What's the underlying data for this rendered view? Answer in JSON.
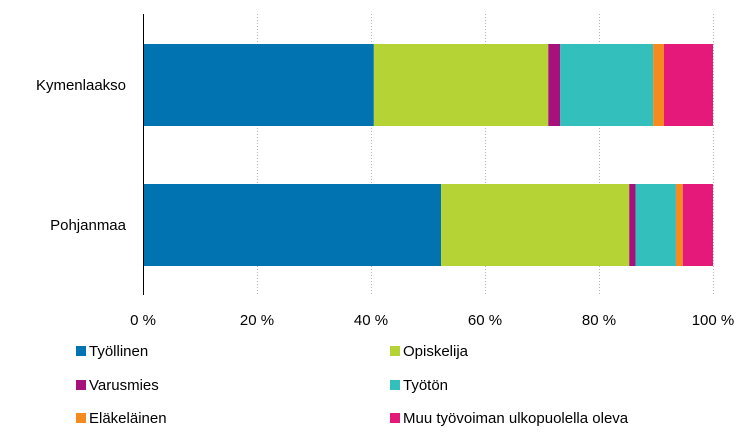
{
  "chart_data": {
    "type": "bar",
    "orientation": "horizontal",
    "stacked": "percent",
    "categories": [
      "Kymenlaakso",
      "Pohjanmaa"
    ],
    "series": [
      {
        "name": "Työllinen",
        "color": "#0073b0",
        "values": [
          40.5,
          52.3
        ]
      },
      {
        "name": "Opiskelija",
        "color": "#b5d334",
        "values": [
          30.6,
          33.0
        ]
      },
      {
        "name": "Varusmies",
        "color": "#a6117c",
        "values": [
          2.1,
          1.1
        ]
      },
      {
        "name": "Työtön",
        "color": "#33bfbc",
        "values": [
          16.3,
          7.1
        ]
      },
      {
        "name": "Eläkeläinen",
        "color": "#f58a1f",
        "values": [
          1.9,
          1.2
        ]
      },
      {
        "name": "Muu työvoiman ulkopuolella oleva",
        "color": "#e5197a",
        "values": [
          8.6,
          5.3
        ]
      }
    ],
    "xticks": [
      "0 %",
      "20 %",
      "40 %",
      "60 %",
      "80 %",
      "100 %"
    ],
    "xlim": [
      0,
      100
    ],
    "grid": "vertical dotted",
    "legend": "bottom, two columns"
  }
}
